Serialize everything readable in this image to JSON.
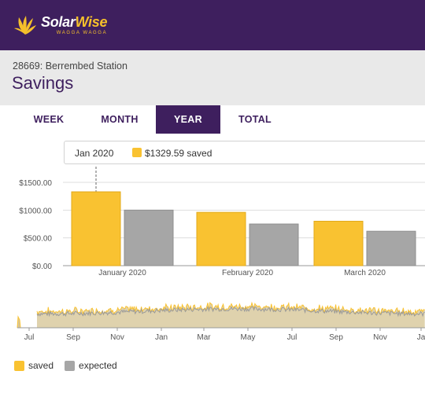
{
  "header": {
    "logo": {
      "name": "SolarWise",
      "part1": "Solar",
      "part2": "Wise",
      "tagline": "WAGGA WAGGA"
    }
  },
  "page": {
    "station": "28669: Berrembed Station",
    "title": "Savings"
  },
  "tabs": [
    {
      "label": "WEEK",
      "active": false
    },
    {
      "label": "MONTH",
      "active": false
    },
    {
      "label": "YEAR",
      "active": true
    },
    {
      "label": "TOTAL",
      "active": false
    }
  ],
  "tooltip": {
    "date": "Jan 2020",
    "value": "$1329.59 saved"
  },
  "colors": {
    "brand_purple": "#3e1f5e",
    "accent_yellow": "#f5c02b",
    "saved": "#f9c231",
    "expected": "#a6a6a6"
  },
  "chart_data": [
    {
      "type": "bar",
      "categories": [
        "January 2020",
        "February 2020",
        "March 2020"
      ],
      "series": [
        {
          "name": "saved",
          "values": [
            1329.59,
            960,
            800
          ]
        },
        {
          "name": "expected",
          "values": [
            1000,
            750,
            620
          ]
        }
      ],
      "y_ticks": [
        "$0.00",
        "$500.00",
        "$1000.00",
        "$1500.00"
      ],
      "ylim": [
        0,
        1500
      ],
      "grid": true
    },
    {
      "type": "area",
      "x_ticks": [
        "Jul",
        "Sep",
        "Nov",
        "Jan",
        "Mar",
        "May",
        "Jul",
        "Sep",
        "Nov",
        "Ja"
      ],
      "series": [
        {
          "name": "saved"
        },
        {
          "name": "expected"
        }
      ]
    }
  ],
  "legend": [
    {
      "label": "saved",
      "color": "#f9c231"
    },
    {
      "label": "expected",
      "color": "#a6a6a6"
    }
  ]
}
